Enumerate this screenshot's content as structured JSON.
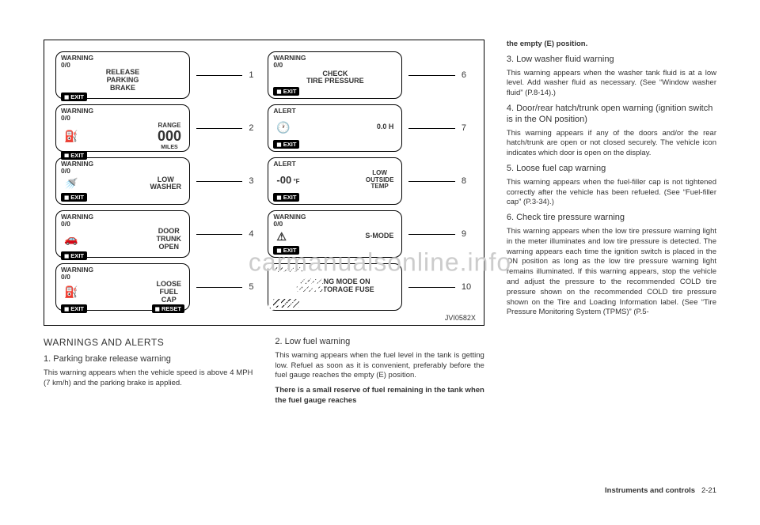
{
  "figure": {
    "code": "JVI0582X",
    "lcds": [
      {
        "n": "1",
        "top1": "WARNING",
        "top2": "0/0",
        "body": "RELEASE<br>PARKING<br>BRAKE",
        "foot": [
          "EXIT"
        ]
      },
      {
        "n": "2",
        "top1": "WARNING",
        "top2": "0/0",
        "body": "<span style='font-size:8px'>RANGE</span><br><span class='big000'>000</span><br><span style='font-size:7px'>MILES</span>",
        "extra": "fuel",
        "foot": [
          "EXIT"
        ]
      },
      {
        "n": "3",
        "top1": "WARNING",
        "top2": "0/0",
        "body": "LOW<br>WASHER",
        "extra": "washer",
        "foot": [
          "EXIT"
        ]
      },
      {
        "n": "4",
        "top1": "WARNING",
        "top2": "0/0",
        "body": "DOOR<br>TRUNK<br>OPEN",
        "extra": "car",
        "foot": [
          "EXIT"
        ]
      },
      {
        "n": "5",
        "top1": "WARNING",
        "top2": "0/0",
        "body": "LOOSE<br>FUEL<br>CAP",
        "extra": "cap",
        "foot": [
          "EXIT",
          "RESET"
        ]
      },
      {
        "n": "6",
        "top1": "WARNING",
        "top2": "0/0",
        "body": "CHECK<br>TIRE PRESSURE",
        "foot": [
          "EXIT"
        ]
      },
      {
        "n": "7",
        "top1": "ALERT",
        "top2": "",
        "body": "0.0 H",
        "extra": "clock",
        "foot": [
          "EXIT"
        ]
      },
      {
        "n": "8",
        "top1": "ALERT",
        "top2": "",
        "body": "<span style='font-size:13px;font-weight:900'>-00</span><span style='font-size:8px'> °F</span>",
        "body2": "LOW<br>OUTSIDE<br>TEMP",
        "foot": [
          "EXIT"
        ]
      },
      {
        "n": "9",
        "top1": "WARNING",
        "top2": "0/0",
        "body": "S-MODE",
        "extra": "warn",
        "foot": [
          "EXIT"
        ]
      },
      {
        "n": "10",
        "top1": "WARNING",
        "top2": "",
        "body": "SHIPPING MODE ON<br>PUSH STORAGE FUSE",
        "hatched": true,
        "foot": [
          "EXIT"
        ]
      }
    ]
  },
  "left": {
    "h2": "WARNINGS AND ALERTS",
    "h3": "1. Parking brake release warning",
    "p1": "This warning appears when the vehicle speed is above 4 MPH (7 km/h) and the parking brake is applied."
  },
  "mid": {
    "h3": "2. Low fuel warning",
    "p1": "This warning appears when the fuel level in the tank is getting low. Refuel as soon as it is convenient, preferably before the fuel gauge reaches the empty (E) position.",
    "p2": "There is a small reserve of fuel remaining in the tank when the fuel gauge reaches"
  },
  "right": {
    "bold_cont": "the empty (E) position.",
    "h3a": "3. Low washer fluid warning",
    "p3a": "This warning appears when the washer tank fluid is at a low level. Add washer fluid as necessary. (See “Window washer fluid” (P.8-14).)",
    "h3b": "4. Door/rear hatch/trunk open warning (ignition switch is in the ON position)",
    "p3b": "This warning appears if any of the doors and/or the rear hatch/trunk are open or not closed securely. The vehicle icon indicates which door is open on the display.",
    "h3c": "5. Loose fuel cap warning",
    "p3c": "This warning appears when the fuel-filler cap is not tightened correctly after the vehicle has been refueled. (See “Fuel-filler cap” (P.3-34).)",
    "h3d": "6. Check tire pressure warning",
    "p3d": "This warning appears when the low tire pressure warning light in the meter illuminates and low tire pressure is detected. The warning appears each time the ignition switch is placed in the ON position as long as the low tire pressure warning light remains illuminated. If this warning appears, stop the vehicle and adjust the pressure to the recommended COLD tire pressure shown on the recommended COLD tire pressure shown on the Tire and Loading Information label. (See “Tire Pressure Monitoring System (TPMS)” (P.5-"
  },
  "footer": {
    "label": "Instruments and controls",
    "page": "2-21"
  },
  "watermark": "carmanualsonline.info"
}
